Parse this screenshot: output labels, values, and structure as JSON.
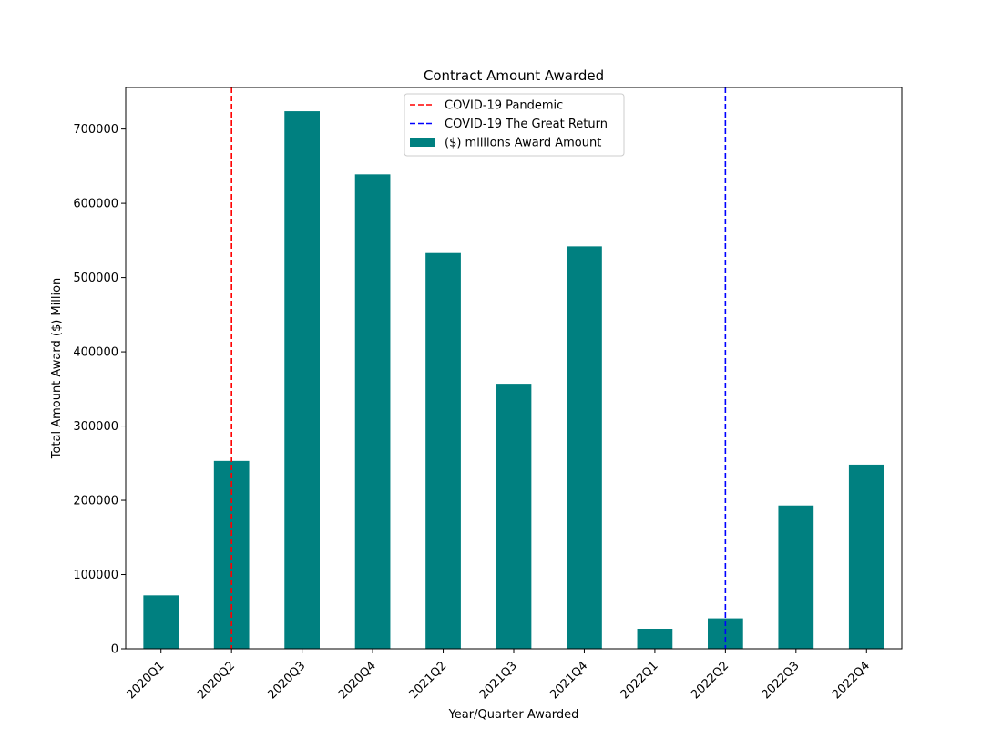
{
  "chart_data": {
    "type": "bar",
    "title": "Contract Amount Awarded",
    "xlabel": "Year/Quarter Awarded",
    "ylabel": "Total Amount Award ($) Million",
    "categories": [
      "2020Q1",
      "2020Q2",
      "2020Q3",
      "2020Q4",
      "2021Q2",
      "2021Q3",
      "2021Q4",
      "2022Q1",
      "2022Q2",
      "2022Q3",
      "2022Q4"
    ],
    "series": [
      {
        "name": "($) millions Award Amount",
        "color": "#008080",
        "values": [
          72000,
          253000,
          724000,
          639000,
          533000,
          357000,
          542000,
          27000,
          41000,
          193000,
          248000
        ]
      }
    ],
    "ylim": [
      0,
      756000
    ],
    "yticks": [
      0,
      100000,
      200000,
      300000,
      400000,
      500000,
      600000,
      700000
    ],
    "ytick_labels": [
      "0",
      "100000",
      "200000",
      "300000",
      "400000",
      "500000",
      "600000",
      "700000"
    ],
    "reference_lines": [
      {
        "label": "COVID-19 Pandemic",
        "category": "2020Q2",
        "color": "#ff0000",
        "style": "dashed"
      },
      {
        "label": "COVID-19 The Great Return",
        "category": "2022Q2",
        "color": "#0000ff",
        "style": "dashed"
      }
    ],
    "legend_position": "top-center",
    "grid": false
  }
}
